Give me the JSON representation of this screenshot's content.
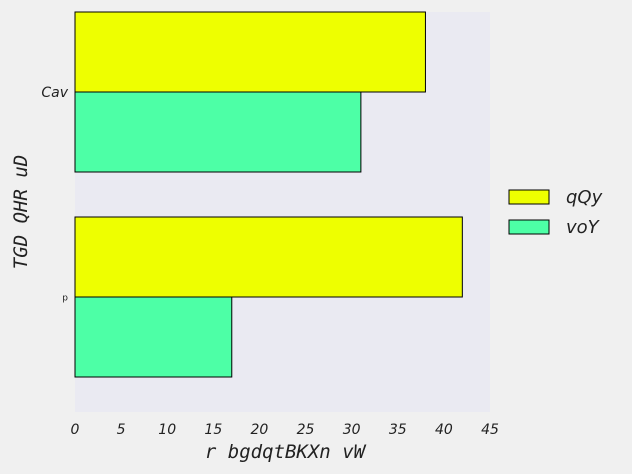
{
  "chart_data": {
    "type": "bar",
    "orientation": "horizontal",
    "categories": [
      "Cav",
      "p"
    ],
    "series": [
      {
        "name": "qQy",
        "values": [
          38,
          42
        ],
        "color": "#eeff00"
      },
      {
        "name": "voY",
        "values": [
          31,
          17
        ],
        "color": "#4dffa6"
      }
    ],
    "xlabel": "r bgdqtBKXn vW",
    "ylabel": "TGD QHR uD",
    "xlim": [
      0,
      45
    ],
    "xticks": [
      "0",
      "5",
      "10",
      "15",
      "20",
      "25",
      "30",
      "35",
      "40",
      "45"
    ],
    "legend_position": "right",
    "grid": false,
    "plot_background": "#eaeaf2"
  }
}
